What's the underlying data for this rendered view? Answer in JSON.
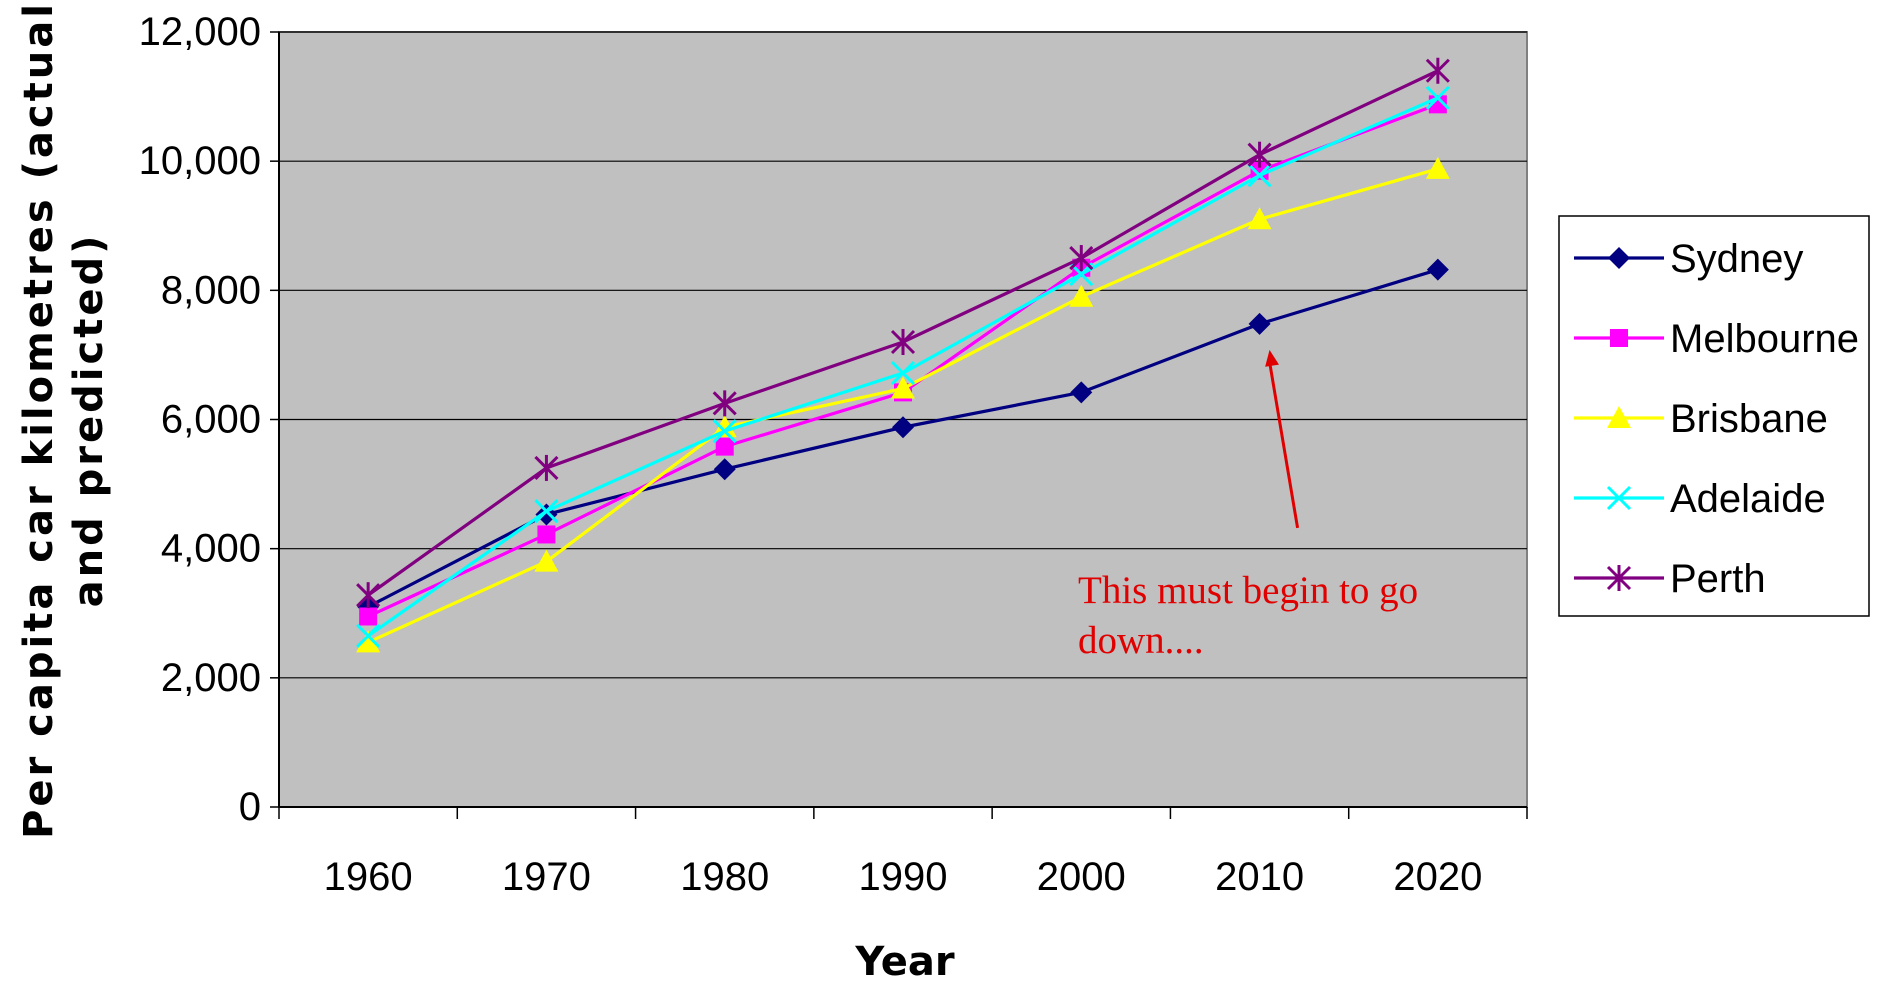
{
  "chart_data": {
    "type": "line",
    "categories": [
      "1960",
      "1970",
      "1980",
      "1990",
      "2000",
      "2010",
      "2020"
    ],
    "ylabel_lines": [
      "Per capita car kilometres (actual",
      "and predicted)"
    ],
    "xlabel": "Year",
    "ylim": [
      0,
      12000
    ],
    "ytick_values": [
      0,
      2000,
      4000,
      6000,
      8000,
      10000,
      12000
    ],
    "ytick_labels": [
      "0",
      "2,000",
      "4,000",
      "6,000",
      "8,000",
      "10,000",
      "12,000"
    ],
    "grid": true,
    "plot_background": "#c0c0c0",
    "legend_position": "right",
    "series": [
      {
        "name": "Sydney",
        "color": "#000080",
        "marker": "diamond",
        "values": [
          3100,
          4530,
          5230,
          5880,
          6420,
          7480,
          8320
        ]
      },
      {
        "name": "Melbourne",
        "color": "#ff00ff",
        "marker": "square",
        "values": [
          2950,
          4220,
          5580,
          6420,
          8350,
          9850,
          10880
        ]
      },
      {
        "name": "Brisbane",
        "color": "#ffff00",
        "marker": "triangle",
        "values": [
          2550,
          3800,
          5880,
          6480,
          7900,
          9100,
          9880
        ]
      },
      {
        "name": "Adelaide",
        "color": "#00ffff",
        "marker": "x",
        "values": [
          2650,
          4580,
          5820,
          6720,
          8250,
          9780,
          10980
        ]
      },
      {
        "name": "Perth",
        "color": "#800080",
        "marker": "star",
        "values": [
          3280,
          5250,
          6250,
          7200,
          8500,
          10100,
          11400
        ]
      }
    ],
    "annotation": {
      "lines": [
        "This must begin to go",
        "down...."
      ],
      "color": "#e00000",
      "arrow_target_category": "2010",
      "arrow_target_series": "Sydney"
    }
  }
}
